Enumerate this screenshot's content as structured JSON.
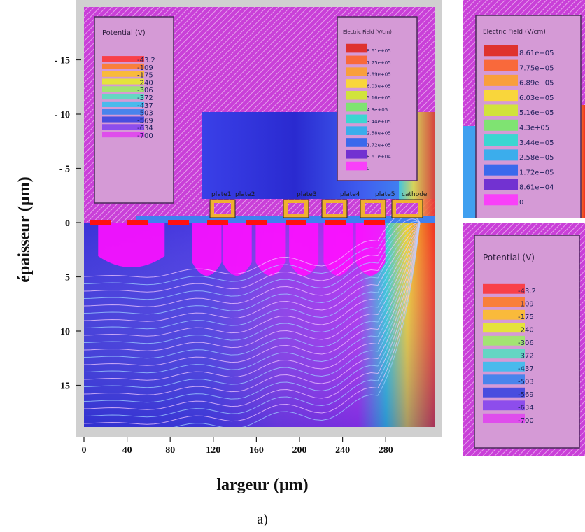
{
  "chart_data": {
    "type": "heatmap",
    "description_kind": "device simulation cross-section",
    "xlabel": "largeur (µm)",
    "ylabel": "épaisseur (µm)",
    "x_ticks": [
      0,
      40,
      80,
      120,
      160,
      200,
      240,
      280
    ],
    "y_ticks": [
      {
        "value": -15,
        "label": "- 15"
      },
      {
        "value": -10,
        "label": "- 10"
      },
      {
        "value": -5,
        "label": "- 5"
      },
      {
        "value": 0,
        "label": "0"
      },
      {
        "value": 5,
        "label": "5"
      },
      {
        "value": 10,
        "label": "10"
      },
      {
        "value": 15,
        "label": "15"
      }
    ],
    "xlim": [
      0,
      330
    ],
    "ylim": [
      -20,
      20
    ],
    "electrode_labels": [
      "plate1",
      "plate2",
      "plate3",
      "plate4",
      "plate5",
      "cathode"
    ],
    "potential_legend": {
      "title": "Potential (V)",
      "values": [
        "-43.2",
        "-109",
        "-175",
        "-240",
        "-306",
        "-372",
        "-437",
        "-503",
        "-569",
        "-634",
        "-700"
      ],
      "colors": [
        "#ff3030",
        "#ff7a20",
        "#ffc020",
        "#e8f020",
        "#9af060",
        "#50e0c0",
        "#30c0f0",
        "#3080f0",
        "#3040e0",
        "#8040f0",
        "#e040f0"
      ]
    },
    "field_legend": {
      "title": "Electric Field (V/cm)",
      "values": [
        "8.61e+05",
        "7.75e+05",
        "6.89e+05",
        "6.03e+05",
        "5.16e+05",
        "4.3e+05",
        "3.44e+05",
        "2.58e+05",
        "1.72e+05",
        "8.61e+04",
        "0"
      ],
      "colors": [
        "#e02010",
        "#ff6020",
        "#ffa020",
        "#ffe020",
        "#d0f020",
        "#70f060",
        "#20e0d0",
        "#20b0f0",
        "#2060f0",
        "#6020d0",
        "#ff30ff"
      ]
    },
    "caption": "a)"
  }
}
